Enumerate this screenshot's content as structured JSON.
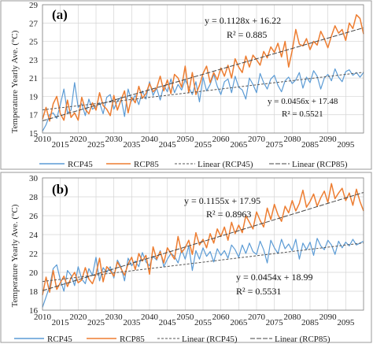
{
  "colors": {
    "rcp45": "#5b9bd5",
    "rcp85": "#ed7d31",
    "trend45": "#555555",
    "trend85": "#444444",
    "frame": "#9a9a9a"
  },
  "chart_data": [
    {
      "type": "line",
      "panel_label": "(a)",
      "ylabel": "Temperature Yearly Ave. (°C)",
      "ylim": [
        15,
        29
      ],
      "yticks": [
        15,
        17,
        19,
        21,
        23,
        25,
        27,
        29
      ],
      "xlim": [
        2010,
        2100
      ],
      "xticks": [
        2010,
        2015,
        2020,
        2025,
        2030,
        2035,
        2040,
        2045,
        2050,
        2055,
        2060,
        2065,
        2070,
        2075,
        2080,
        2085,
        2090,
        2095
      ],
      "grid": true,
      "legend": {
        "position": "bottom",
        "entries": [
          "RCP45",
          "RCP85",
          "Linear (RCP45)",
          "Linear (RCP85)"
        ]
      },
      "trend": {
        "rcp45": {
          "equation": "y = 0.0456x + 17.48",
          "r2": "R² = 0.5521",
          "slope": 0.0456,
          "intercept": 17.48
        },
        "rcp85": {
          "equation": "y = 0.1128x + 16.22",
          "r2": "R² = 0.885",
          "slope": 0.1128,
          "intercept": 16.22
        }
      },
      "x_start": 2010,
      "series": [
        {
          "name": "RCP45",
          "values": [
            15.2,
            15.9,
            17.0,
            17.2,
            16.6,
            18.1,
            19.8,
            17.2,
            17.5,
            20.5,
            17.8,
            18.2,
            16.9,
            18.7,
            17.6,
            17.9,
            18.3,
            17.1,
            18.9,
            19.2,
            17.6,
            18.5,
            18.9,
            16.8,
            19.8,
            18.5,
            19.1,
            18.1,
            19.6,
            18.7,
            20.6,
            19.1,
            19.9,
            18.6,
            20.2,
            19.5,
            20.9,
            19.4,
            20.3,
            19.7,
            20.8,
            20.0,
            19.2,
            20.6,
            18.4,
            21.1,
            19.6,
            20.3,
            21.4,
            20.1,
            19.2,
            20.6,
            20.9,
            19.4,
            21.2,
            20.0,
            19.7,
            18.7,
            21.0,
            20.3,
            19.4,
            21.5,
            20.5,
            19.8,
            20.9,
            21.3,
            20.2,
            19.5,
            20.7,
            21.1,
            20.4,
            20.8,
            21.6,
            19.9,
            21.1,
            20.5,
            21.8,
            21.2,
            19.8,
            21.0,
            21.4,
            20.7,
            22.0,
            21.1,
            20.6,
            21.7,
            21.9,
            21.3,
            21.6,
            21.1,
            21.6
          ]
        },
        {
          "name": "RCP85",
          "values": [
            16.5,
            17.8,
            16.3,
            18.2,
            19.0,
            17.1,
            16.4,
            18.6,
            16.7,
            17.2,
            16.4,
            18.9,
            17.6,
            17.1,
            18.3,
            17.5,
            19.4,
            18.0,
            17.6,
            16.9,
            19.1,
            17.5,
            18.6,
            19.6,
            17.2,
            18.9,
            18.3,
            20.1,
            18.8,
            19.3,
            20.4,
            19.5,
            19.9,
            21.2,
            19.6,
            20.8,
            19.3,
            21.4,
            21.0,
            20.0,
            22.3,
            19.4,
            21.6,
            19.2,
            20.2,
            21.5,
            22.3,
            20.5,
            21.6,
            20.8,
            22.1,
            21.2,
            22.4,
            21.0,
            23.1,
            22.2,
            21.6,
            23.4,
            22.2,
            23.5,
            23.0,
            22.4,
            23.9,
            23.2,
            24.4,
            23.8,
            24.8,
            23.3,
            25.0,
            22.2,
            24.0,
            26.3,
            24.7,
            24.5,
            25.3,
            24.1,
            25.0,
            24.6,
            26.1,
            25.3,
            24.3,
            25.6,
            26.7,
            25.9,
            26.3,
            25.1,
            27.0,
            26.4,
            27.9,
            27.5,
            25.8
          ]
        }
      ]
    },
    {
      "type": "line",
      "panel_label": "(b)",
      "ylabel": "Temperature Yearly Ave. (°C)",
      "ylim": [
        16,
        30
      ],
      "yticks": [
        16,
        18,
        20,
        22,
        24,
        26,
        28,
        30
      ],
      "xlim": [
        2010,
        2100
      ],
      "xticks": [
        2010,
        2015,
        2020,
        2025,
        2030,
        2035,
        2040,
        2045,
        2050,
        2055,
        2060,
        2065,
        2070,
        2075,
        2080,
        2085,
        2090,
        2095
      ],
      "grid": true,
      "legend": {
        "position": "bottom",
        "entries": [
          "RCP45",
          "RCP85",
          "Linear (RCP45)",
          "Linear (RCP85)"
        ]
      },
      "trend": {
        "rcp45": {
          "equation": "y = 0.0454x + 18.99",
          "r2": "R² = 0.5531",
          "slope": 0.0454,
          "intercept": 18.99
        },
        "rcp85": {
          "equation": "y = 0.1155x + 17.95",
          "r2": "R² = 0.8963",
          "slope": 0.1155,
          "intercept": 17.95
        }
      },
      "x_start": 2010,
      "series": [
        {
          "name": "RCP45",
          "values": [
            16.3,
            17.4,
            18.5,
            20.4,
            20.8,
            19.2,
            18.0,
            20.2,
            19.7,
            18.6,
            20.6,
            19.3,
            18.8,
            20.4,
            19.7,
            21.6,
            19.1,
            20.5,
            20.0,
            20.6,
            19.4,
            21.3,
            20.6,
            19.1,
            21.5,
            20.7,
            21.2,
            20.6,
            22.1,
            21.1,
            20.7,
            21.7,
            21.3,
            22.3,
            20.6,
            21.4,
            22.0,
            21.7,
            21.0,
            22.4,
            21.4,
            22.8,
            20.2,
            22.3,
            21.4,
            22.6,
            21.7,
            22.2,
            21.1,
            22.5,
            21.8,
            22.3,
            21.5,
            22.9,
            22.4,
            21.6,
            22.9,
            22.0,
            23.1,
            22.2,
            21.9,
            23.3,
            22.4,
            21.0,
            23.4,
            22.6,
            22.0,
            23.5,
            22.5,
            23.0,
            22.3,
            23.5,
            21.4,
            23.1,
            22.4,
            23.2,
            21.8,
            23.6,
            22.8,
            22.4,
            23.4,
            22.9,
            21.9,
            23.3,
            22.6,
            23.2,
            22.8,
            23.5,
            22.9,
            23.1,
            23.3
          ]
        },
        {
          "name": "RCP85",
          "values": [
            17.6,
            19.5,
            17.9,
            20.2,
            18.2,
            18.9,
            19.6,
            18.5,
            19.4,
            20.0,
            18.9,
            19.2,
            20.5,
            19.3,
            18.8,
            19.8,
            21.5,
            19.0,
            20.6,
            20.2,
            19.6,
            21.1,
            20.4,
            19.7,
            20.9,
            21.6,
            20.3,
            22.0,
            21.2,
            21.8,
            19.8,
            22.7,
            21.4,
            22.2,
            21.0,
            22.6,
            22.0,
            21.4,
            23.8,
            22.1,
            22.6,
            23.4,
            21.9,
            24.2,
            22.9,
            23.5,
            22.6,
            24.1,
            23.1,
            24.6,
            23.8,
            24.8,
            23.4,
            25.3,
            24.1,
            25.0,
            24.2,
            26.0,
            25.3,
            24.6,
            26.4,
            25.5,
            24.8,
            26.8,
            25.6,
            27.2,
            26.1,
            25.4,
            27.0,
            26.3,
            27.6,
            26.5,
            27.3,
            28.7,
            26.9,
            27.5,
            28.3,
            27.0,
            27.9,
            28.6,
            27.4,
            29.4,
            27.8,
            28.4,
            28.9,
            27.6,
            28.4,
            27.1,
            28.8,
            27.5,
            26.5
          ]
        }
      ]
    }
  ]
}
